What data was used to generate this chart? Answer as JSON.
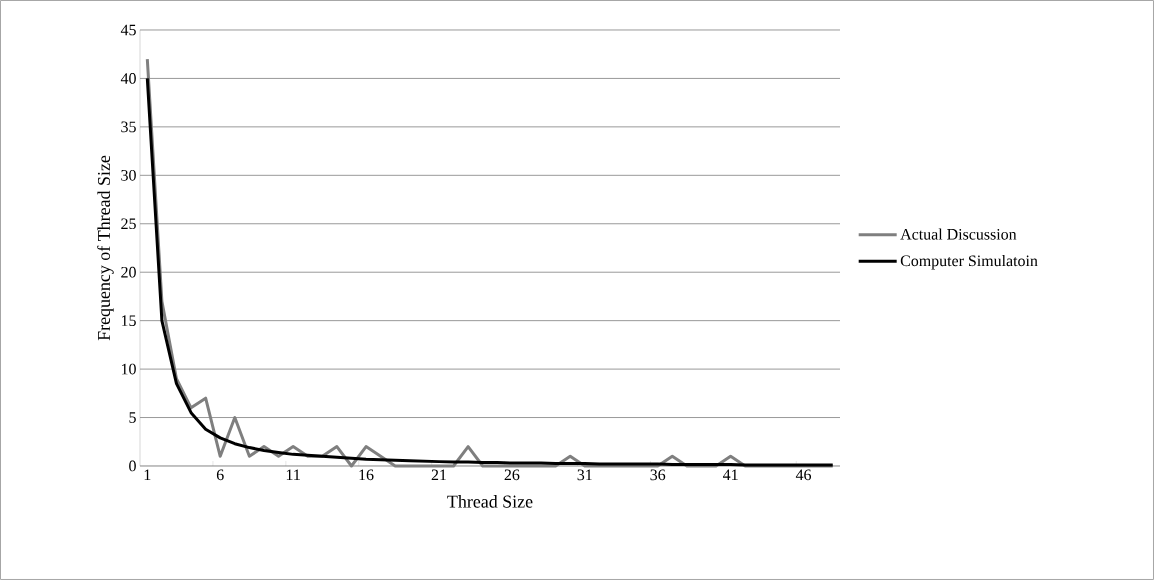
{
  "chart_data": {
    "type": "line",
    "xlabel": "Thread Size",
    "ylabel": "Frequency of Thread Size",
    "categories": [
      "1",
      null,
      null,
      null,
      null,
      "6",
      null,
      null,
      null,
      null,
      "11",
      null,
      null,
      null,
      null,
      "16",
      null,
      null,
      null,
      null,
      "21",
      null,
      null,
      null,
      null,
      "26",
      null,
      null,
      null,
      null,
      "31",
      null,
      null,
      null,
      null,
      "36",
      null,
      null,
      null,
      null,
      "41",
      null,
      null,
      null,
      null,
      "46",
      null,
      null
    ],
    "series": [
      {
        "name": "Actual Discussion",
        "color": "#7f7f7f",
        "values": [
          42,
          17,
          9,
          6,
          7,
          1,
          5,
          1,
          2,
          1,
          2,
          1,
          1,
          2,
          0,
          2,
          1,
          0,
          0,
          0,
          0,
          0,
          2,
          0,
          0,
          0,
          0,
          0,
          0,
          1,
          0,
          0,
          0,
          0,
          0,
          0,
          1,
          0,
          0,
          0,
          1,
          0,
          0,
          0,
          0,
          0,
          0,
          0
        ]
      },
      {
        "name": "Computer Simulatoin",
        "color": "#000000",
        "values": [
          40,
          15,
          8.5,
          5.5,
          3.8,
          2.9,
          2.3,
          1.9,
          1.6,
          1.4,
          1.2,
          1.1,
          1.0,
          0.9,
          0.8,
          0.7,
          0.65,
          0.6,
          0.55,
          0.5,
          0.45,
          0.4,
          0.4,
          0.35,
          0.35,
          0.3,
          0.3,
          0.3,
          0.25,
          0.25,
          0.25,
          0.2,
          0.2,
          0.2,
          0.2,
          0.2,
          0.15,
          0.15,
          0.15,
          0.15,
          0.15,
          0.1,
          0.1,
          0.1,
          0.1,
          0.1,
          0.1,
          0.1
        ]
      }
    ],
    "ylim": [
      0,
      45
    ],
    "yticks": [
      0,
      5,
      10,
      15,
      20,
      25,
      30,
      35,
      40,
      45
    ],
    "grid": "y",
    "legend": "right"
  }
}
